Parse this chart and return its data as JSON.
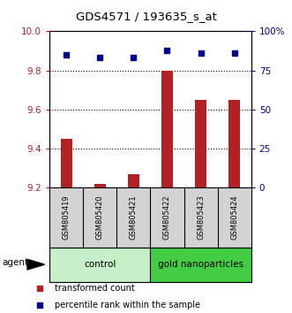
{
  "title": "GDS4571 / 193635_s_at",
  "samples": [
    "GSM805419",
    "GSM805420",
    "GSM805421",
    "GSM805422",
    "GSM805423",
    "GSM805424"
  ],
  "bar_values": [
    9.45,
    9.22,
    9.27,
    9.8,
    9.65,
    9.65
  ],
  "dot_values": [
    85,
    83,
    83,
    88,
    86,
    86
  ],
  "ylim_left": [
    9.2,
    10.0
  ],
  "ylim_right": [
    0,
    100
  ],
  "yticks_left": [
    9.2,
    9.4,
    9.6,
    9.8,
    10.0
  ],
  "yticks_right": [
    0,
    25,
    50,
    75,
    100
  ],
  "ytick_labels_right": [
    "0",
    "25",
    "50",
    "75",
    "100%"
  ],
  "bar_color": "#b22222",
  "dot_color": "#00008B",
  "bar_bottom": 9.2,
  "group_labels": [
    "control",
    "gold nanoparticles"
  ],
  "group_color_control": "#c8f0c8",
  "group_color_gold": "#44cc44",
  "agent_label": "agent",
  "legend_items": [
    "transformed count",
    "percentile rank within the sample"
  ],
  "legend_colors": [
    "#b22222",
    "#00008B"
  ],
  "dotted_lines": [
    9.4,
    9.6,
    9.8
  ]
}
